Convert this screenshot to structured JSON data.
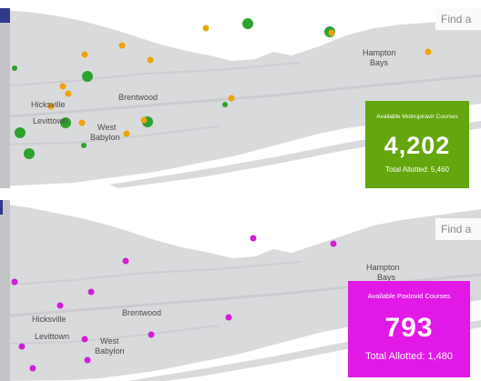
{
  "search": {
    "placeholder": "Find a"
  },
  "places": {
    "hicksville": "Hicksville",
    "levittown": "Levittown",
    "west_babylon_line1": "West",
    "west_babylon_line2": "Babylon",
    "brentwood": "Brentwood",
    "hampton_bays_line1": "Hampton",
    "hampton_bays_line2": "Bays"
  },
  "molnupiravir": {
    "label": "Available Molnupiravir Courses",
    "value": "4,202",
    "total": "Total Allotted: 5,460",
    "color": "#63a60d"
  },
  "paxlovid": {
    "label": "Available Paxlovid Courses",
    "value": "793",
    "total": "Total Allotted: 1,480",
    "color": "#e118e6"
  },
  "colors": {
    "land": "#d9dadc",
    "water": "#ffffff",
    "roads": "#cfd0d3",
    "marker_orange": "#f0a20a",
    "marker_green": "#2fa12f",
    "marker_magenta": "#d21ed8"
  }
}
